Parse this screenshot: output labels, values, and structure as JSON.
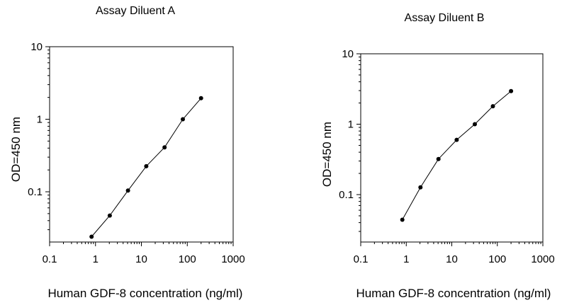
{
  "chart_data": [
    {
      "type": "line",
      "title": "Assay Diluent A",
      "xlabel": "Human GDF-8 concentration (ng/ml)",
      "ylabel": "OD=450 nm",
      "x_scale": "log",
      "y_scale": "log",
      "xlim": [
        0.1,
        1000
      ],
      "ylim": [
        0.02,
        10
      ],
      "x_ticks": [
        "0.1",
        "1",
        "10",
        "100",
        "1000"
      ],
      "y_ticks": [
        "0.1",
        "1",
        "10"
      ],
      "grid": false,
      "legend": "none",
      "series": [
        {
          "x": [
            0.82,
            2.05,
            5.1,
            12.8,
            32,
            80,
            200
          ],
          "y": [
            0.024,
            0.047,
            0.104,
            0.225,
            0.41,
            1.0,
            1.95
          ]
        }
      ]
    },
    {
      "type": "line",
      "title": "Assay Diluent B",
      "xlabel": "Human GDF-8 concentration (ng/ml)",
      "ylabel": "OD=450 nm",
      "x_scale": "log",
      "y_scale": "log",
      "xlim": [
        0.1,
        1000
      ],
      "ylim": [
        0.02,
        10
      ],
      "x_ticks": [
        "0.1",
        "1",
        "10",
        "100",
        "1000"
      ],
      "y_ticks": [
        "0.1",
        "1",
        "10"
      ],
      "grid": false,
      "legend": "none",
      "series": [
        {
          "x": [
            0.82,
            2.05,
            5.1,
            12.8,
            32,
            80,
            200
          ],
          "y": [
            0.044,
            0.127,
            0.32,
            0.6,
            1.0,
            1.8,
            2.95
          ]
        }
      ]
    }
  ]
}
